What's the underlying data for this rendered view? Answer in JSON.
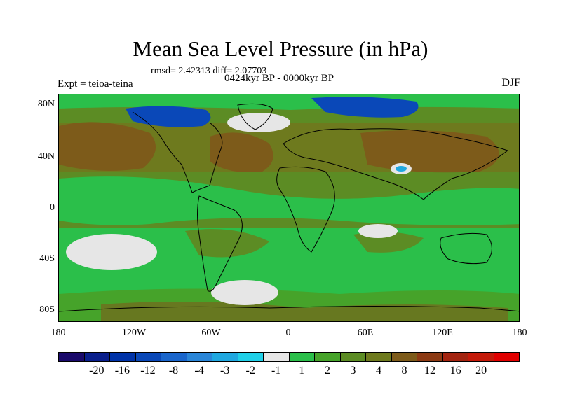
{
  "title": "Mean Sea Level Pressure (in hPa)",
  "stats": "rmsd= 2.42313 diff= 2.07703",
  "period": "0424kyr BP - 0000kyr BP",
  "experiment": "Expt = teioa-teina",
  "season": "DJF",
  "lat_labels": [
    "80N",
    "40N",
    "0",
    "40S",
    "80S"
  ],
  "lon_labels": [
    "180",
    "120W",
    "60W",
    "0",
    "60E",
    "120E",
    "180"
  ],
  "colorbar": {
    "colors": [
      "#1a0a6b",
      "#0a1f8c",
      "#0033a8",
      "#0a48b8",
      "#1a66cc",
      "#2a86d8",
      "#20a8e0",
      "#20d0e8",
      "#e6e6e6",
      "#2bbf4a",
      "#46a32a",
      "#5c8c24",
      "#6e7a1e",
      "#7d5b1a",
      "#8c3a14",
      "#a32410",
      "#c41a0a",
      "#e00000"
    ],
    "labels": [
      "-20",
      "-16",
      "-12",
      "-8",
      "-4",
      "-3",
      "-2",
      "-1",
      "1",
      "2",
      "3",
      "4",
      "8",
      "12",
      "16",
      "20"
    ]
  },
  "map_colors": {
    "green": "#2bbf4a",
    "olive": "#5c8c24",
    "brown": "#7d5b1a",
    "gray": "#e6e6e6",
    "blue_dark": "#0a48b8",
    "blue_light": "#20a8e0"
  }
}
